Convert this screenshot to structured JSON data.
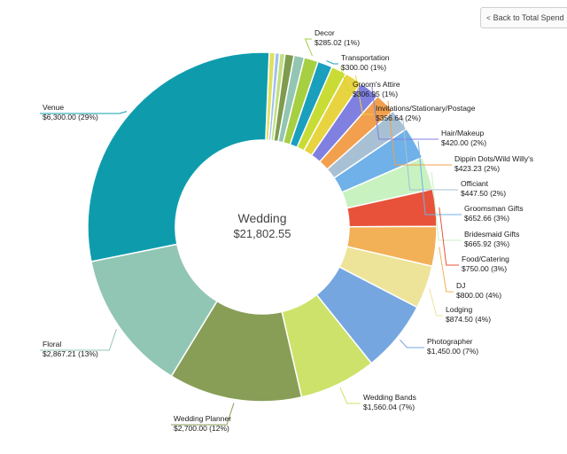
{
  "back_button": {
    "label": "Back to Total Spend"
  },
  "chart_data": {
    "type": "pie",
    "title": "Wedding",
    "total": "$21,802.55",
    "slices": [
      {
        "name": "Decor",
        "value": 285.02,
        "display": "$285.02 (1%)",
        "color": "#a6cf42"
      },
      {
        "name": "Transportation",
        "value": 300.0,
        "display": "$300.00 (1%)",
        "color": "#1a9fbd"
      },
      {
        "name": "Groom's Attire",
        "value": 306.95,
        "display": "$306.95 (1%)",
        "color": "#c8dc35"
      },
      {
        "name": "Invitations/Stationary/Postage",
        "value": 356.64,
        "display": "$356.64 (2%)",
        "color": "#e8d440"
      },
      {
        "name": "Hair/Makeup",
        "value": 420.0,
        "display": "$420.00 (2%)",
        "color": "#8080e0"
      },
      {
        "name": "Dippin Dots/Wild Willy's",
        "value": 423.23,
        "display": "$423.23 (2%)",
        "color": "#f2a04e"
      },
      {
        "name": "Officiant",
        "value": 447.5,
        "display": "$447.50 (2%)",
        "color": "#a8c0d4"
      },
      {
        "name": "Groomsman Gifts",
        "value": 652.66,
        "display": "$652.66 (3%)",
        "color": "#6fb1e8"
      },
      {
        "name": "Bridesmaid Gifts",
        "value": 665.92,
        "display": "$665.92 (3%)",
        "color": "#c8f2c0"
      },
      {
        "name": "Food/Catering",
        "value": 750.0,
        "display": "$750.00 (3%)",
        "color": "#e8523a"
      },
      {
        "name": "DJ",
        "value": 800.0,
        "display": "$800.00 (4%)",
        "color": "#f2b057"
      },
      {
        "name": "Lodging",
        "value": 874.5,
        "display": "$874.50 (4%)",
        "color": "#ede49a"
      },
      {
        "name": "Photographer",
        "value": 1450.0,
        "display": "$1,450.00 (7%)",
        "color": "#75a6e0"
      },
      {
        "name": "Wedding Bands",
        "value": 1560.04,
        "display": "$1,560.04 (7%)",
        "color": "#cde26a"
      },
      {
        "name": "Wedding Planner",
        "value": 2700.0,
        "display": "$2,700.00 (12%)",
        "color": "#889e57"
      },
      {
        "name": "Floral",
        "value": 2867.21,
        "display": "$2,867.21 (13%)",
        "color": "#92c6b4"
      },
      {
        "name": "Venue",
        "value": 6300.0,
        "display": "$6,300.00 (29%)",
        "color": "#0e9cad"
      }
    ],
    "small_unlabeled_slices": [
      {
        "value": 120,
        "color": "#e0e060"
      },
      {
        "value": 90,
        "color": "#a0c0f0"
      },
      {
        "value": 110,
        "color": "#c0e080"
      },
      {
        "value": 180,
        "color": "#7f9c4e"
      },
      {
        "value": 210,
        "color": "#93c5b3"
      }
    ]
  }
}
